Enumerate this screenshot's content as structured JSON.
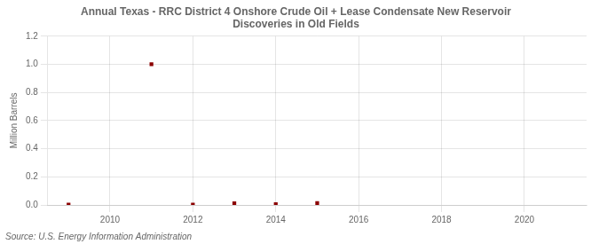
{
  "chart_data": {
    "type": "scatter",
    "title": "Annual Texas - RRC District 4 Onshore Crude Oil + Lease Condensate New Reservoir\nDiscoveries in Old Fields",
    "ylabel": "Million Barrels",
    "annotations": [
      "Source: U.S. Energy Information Administration"
    ],
    "x": [
      2009,
      2011,
      2012,
      2013,
      2014,
      2015
    ],
    "values": [
      0.003,
      1.001,
      0.003,
      0.012,
      0.005,
      0.013
    ],
    "color": "#8b0000",
    "marker": "square",
    "xlim": [
      2008.5,
      2021.5
    ],
    "xticks": [
      2010,
      2012,
      2014,
      2016,
      2018,
      2020
    ],
    "ylim": [
      0,
      1.2
    ],
    "yticks": [
      {
        "value": 0.0,
        "label": "0.0"
      },
      0.2,
      0.4,
      0.6,
      0.8,
      {
        "value": 1.0,
        "label": "1.0"
      },
      1.2
    ],
    "grid": true
  }
}
